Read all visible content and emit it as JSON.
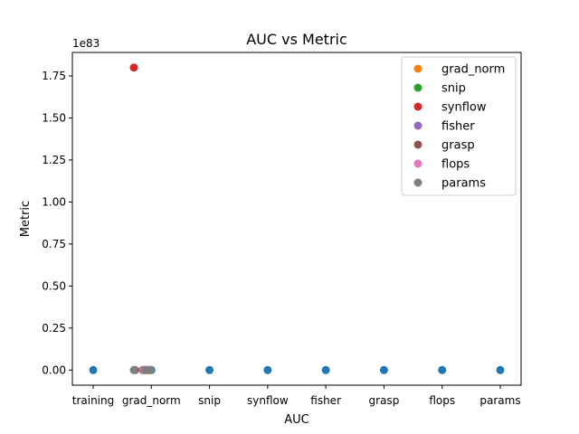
{
  "chart_data": {
    "type": "scatter",
    "title": "AUC vs Metric",
    "xlabel": "AUC",
    "ylabel": "Metric",
    "y_offset_text": "1e83",
    "categories": [
      "training",
      "grad_norm",
      "snip",
      "synflow",
      "fisher",
      "grasp",
      "flops",
      "params"
    ],
    "ylim": [
      -0.09,
      1.89
    ],
    "yticks": [
      0.0,
      0.25,
      0.5,
      0.75,
      1.0,
      1.25,
      1.5,
      1.75
    ],
    "ytick_labels": [
      "0.00",
      "0.25",
      "0.50",
      "0.75",
      "1.00",
      "1.25",
      "1.50",
      "1.75"
    ],
    "grid": false,
    "legend_position": "top-right",
    "series": [
      {
        "name": "",
        "color": "#1f77b4",
        "in_legend": false,
        "points": [
          {
            "x": 0.0,
            "y": 0.0
          },
          {
            "x": 1.0,
            "y": 0.0
          },
          {
            "x": 2.0,
            "y": 0.0
          },
          {
            "x": 3.0,
            "y": 0.0
          },
          {
            "x": 4.0,
            "y": 0.0
          },
          {
            "x": 5.0,
            "y": 0.0
          },
          {
            "x": 6.0,
            "y": 0.0
          },
          {
            "x": 7.0,
            "y": 0.0
          }
        ]
      },
      {
        "name": "grad_norm",
        "color": "#ff7f0e",
        "in_legend": true,
        "points": [
          {
            "x": 0.95,
            "y": 0.0
          },
          {
            "x": 0.97,
            "y": 0.0
          }
        ]
      },
      {
        "name": "snip",
        "color": "#2ca02c",
        "in_legend": true,
        "points": [
          {
            "x": 0.9,
            "y": 0.0
          },
          {
            "x": 0.93,
            "y": 0.0
          }
        ]
      },
      {
        "name": "synflow",
        "color": "#d62728",
        "in_legend": true,
        "points": [
          {
            "x": 0.7,
            "y": 1.8
          }
        ]
      },
      {
        "name": "fisher",
        "color": "#9467bd",
        "in_legend": true,
        "points": [
          {
            "x": 0.88,
            "y": 0.0
          },
          {
            "x": 0.92,
            "y": 0.0
          }
        ]
      },
      {
        "name": "grasp",
        "color": "#8c564b",
        "in_legend": true,
        "points": [
          {
            "x": 0.72,
            "y": 0.0
          },
          {
            "x": 0.85,
            "y": 0.0
          },
          {
            "x": 0.9,
            "y": 0.0
          },
          {
            "x": 0.95,
            "y": 0.0
          }
        ]
      },
      {
        "name": "flops",
        "color": "#e377c2",
        "in_legend": true,
        "points": [
          {
            "x": 0.86,
            "y": 0.0
          },
          {
            "x": 0.94,
            "y": 0.0
          }
        ]
      },
      {
        "name": "params",
        "color": "#7f7f7f",
        "in_legend": true,
        "points": [
          {
            "x": 0.7,
            "y": 0.0
          },
          {
            "x": 0.88,
            "y": 0.0
          },
          {
            "x": 0.98,
            "y": 0.0
          }
        ]
      }
    ]
  }
}
